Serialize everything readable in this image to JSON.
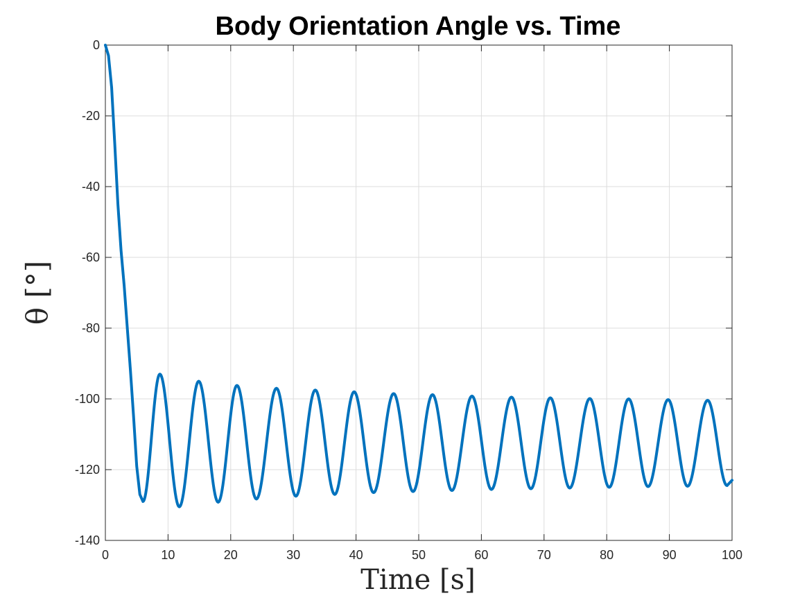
{
  "chart_data": {
    "type": "line",
    "title": "Body Orientation Angle vs. Time",
    "xlabel": "Time [s]",
    "ylabel": "θ [°]",
    "xlim": [
      0,
      100
    ],
    "ylim": [
      -140,
      0
    ],
    "grid": true,
    "x_ticks": [
      "0",
      "10",
      "20",
      "30",
      "40",
      "50",
      "60",
      "70",
      "80",
      "90",
      "100"
    ],
    "y_ticks": [
      "0",
      "-20",
      "-40",
      "-60",
      "-80",
      "-100",
      "-120",
      "-140"
    ],
    "series": [
      {
        "color": "#0072bd",
        "points": [
          [
            0,
            0
          ],
          [
            0.5,
            -3
          ],
          [
            1.0,
            -12
          ],
          [
            1.5,
            -28
          ],
          [
            2.0,
            -45
          ],
          [
            2.5,
            -58
          ],
          [
            3.0,
            -68
          ],
          [
            3.5,
            -80
          ],
          [
            4.0,
            -92
          ],
          [
            4.5,
            -105
          ],
          [
            5.0,
            -119
          ],
          [
            5.5,
            -127
          ],
          [
            6.0,
            -129
          ],
          [
            8.7,
            -93
          ],
          [
            11.8,
            -130.5
          ],
          [
            14.9,
            -95
          ],
          [
            18.0,
            -129.2
          ],
          [
            21.0,
            -96.2
          ],
          [
            24.1,
            -128.3
          ],
          [
            27.3,
            -97
          ],
          [
            30.4,
            -127.5
          ],
          [
            33.5,
            -97.5
          ],
          [
            36.6,
            -127
          ],
          [
            39.7,
            -98
          ],
          [
            42.8,
            -126.5
          ],
          [
            46.0,
            -98.5
          ],
          [
            49.1,
            -126.2
          ],
          [
            52.2,
            -98.8
          ],
          [
            55.3,
            -125.9
          ],
          [
            58.5,
            -99.2
          ],
          [
            61.6,
            -125.6
          ],
          [
            64.8,
            -99.5
          ],
          [
            67.9,
            -125.4
          ],
          [
            71.0,
            -99.7
          ],
          [
            74.1,
            -125.2
          ],
          [
            77.3,
            -99.9
          ],
          [
            80.4,
            -125
          ],
          [
            83.5,
            -100
          ],
          [
            86.6,
            -124.8
          ],
          [
            89.8,
            -100.2
          ],
          [
            92.9,
            -124.7
          ],
          [
            96.1,
            -100.4
          ],
          [
            99.2,
            -124.5
          ],
          [
            100,
            -123
          ]
        ]
      }
    ]
  }
}
